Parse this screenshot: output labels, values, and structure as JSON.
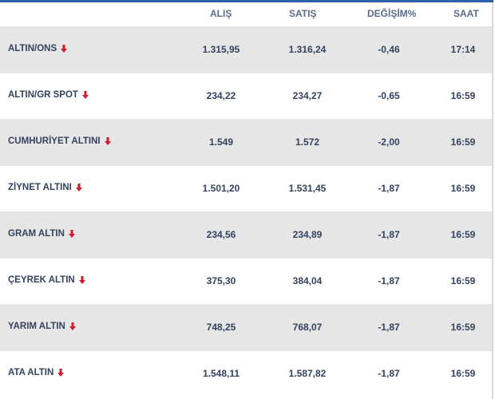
{
  "header": {
    "alis": "ALIŞ",
    "satis": "SATIŞ",
    "degisim": "DEĞİŞİM%",
    "saat": "SAAT"
  },
  "colors": {
    "accent": "#2d63a8",
    "row_alt": "#e6e6e6",
    "text": "#33425e",
    "header_text": "#5b6b88",
    "down_arrow": "#d11a2a"
  },
  "rows": [
    {
      "name": "ALTIN/ONS",
      "alis": "1.315,95",
      "satis": "1.316,24",
      "degisim": "-0,46",
      "saat": "17:14",
      "trend_icon": "down-arrow-icon"
    },
    {
      "name": "ALTIN/GR SPOT",
      "alis": "234,22",
      "satis": "234,27",
      "degisim": "-0,65",
      "saat": "16:59",
      "trend_icon": "down-arrow-icon"
    },
    {
      "name": "CUMHURİYET ALTINI",
      "alis": "1.549",
      "satis": "1.572",
      "degisim": "-2,00",
      "saat": "16:59",
      "trend_icon": "down-arrow-icon"
    },
    {
      "name": "ZİYNET ALTINI",
      "alis": "1.501,20",
      "satis": "1.531,45",
      "degisim": "-1,87",
      "saat": "16:59",
      "trend_icon": "down-arrow-icon"
    },
    {
      "name": "GRAM ALTIN",
      "alis": "234,56",
      "satis": "234,89",
      "degisim": "-1,87",
      "saat": "16:59",
      "trend_icon": "down-arrow-icon"
    },
    {
      "name": "ÇEYREK ALTIN",
      "alis": "375,30",
      "satis": "384,04",
      "degisim": "-1,87",
      "saat": "16:59",
      "trend_icon": "down-arrow-icon"
    },
    {
      "name": "YARIM ALTIN",
      "alis": "748,25",
      "satis": "768,07",
      "degisim": "-1,87",
      "saat": "16:59",
      "trend_icon": "down-arrow-icon"
    },
    {
      "name": "ATA ALTIN",
      "alis": "1.548,11",
      "satis": "1.587,82",
      "degisim": "-1,87",
      "saat": "16:59",
      "trend_icon": "down-arrow-icon"
    }
  ]
}
